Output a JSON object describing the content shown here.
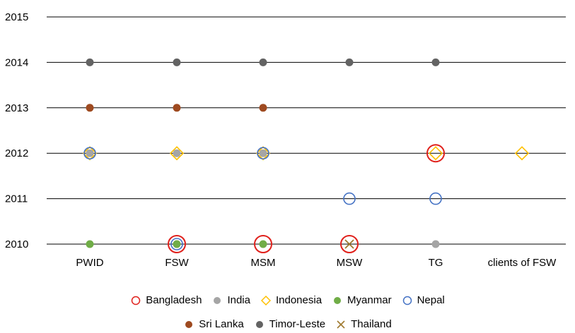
{
  "chart_data": {
    "type": "scatter",
    "title": "",
    "xlabel": "",
    "ylabel": "",
    "categories": [
      "PWID",
      "FSW",
      "MSM",
      "MSW",
      "TG",
      "clients of FSW"
    ],
    "y_ticks": [
      "2010",
      "2011",
      "2012",
      "2013",
      "2014",
      "2015"
    ],
    "ylim": [
      2010,
      2015
    ],
    "grid": true,
    "legend_position": "bottom",
    "series": [
      {
        "name": "Bangladesh",
        "marker": "open-circle-large",
        "color": "#e0201b",
        "points": [
          {
            "x": "FSW",
            "y": 2010
          },
          {
            "x": "MSM",
            "y": 2010
          },
          {
            "x": "MSW",
            "y": 2010
          },
          {
            "x": "TG",
            "y": 2012
          }
        ]
      },
      {
        "name": "India",
        "marker": "filled-circle",
        "color": "#a5a5a5",
        "points": [
          {
            "x": "PWID",
            "y": 2012
          },
          {
            "x": "FSW",
            "y": 2012
          },
          {
            "x": "MSM",
            "y": 2012
          },
          {
            "x": "FSW",
            "y": 2010
          },
          {
            "x": "TG",
            "y": 2010
          }
        ]
      },
      {
        "name": "Indonesia",
        "marker": "open-diamond",
        "color": "#ffc000",
        "points": [
          {
            "x": "PWID",
            "y": 2012
          },
          {
            "x": "FSW",
            "y": 2012
          },
          {
            "x": "MSM",
            "y": 2012
          },
          {
            "x": "TG",
            "y": 2012
          },
          {
            "x": "clients of FSW",
            "y": 2012
          }
        ]
      },
      {
        "name": "Myanmar",
        "marker": "filled-circle",
        "color": "#70ad47",
        "points": [
          {
            "x": "PWID",
            "y": 2010
          },
          {
            "x": "FSW",
            "y": 2010
          },
          {
            "x": "MSM",
            "y": 2010
          }
        ]
      },
      {
        "name": "Nepal",
        "marker": "open-circle",
        "color": "#4472c4",
        "points": [
          {
            "x": "PWID",
            "y": 2012
          },
          {
            "x": "MSM",
            "y": 2012
          },
          {
            "x": "FSW",
            "y": 2010
          },
          {
            "x": "MSW",
            "y": 2011
          },
          {
            "x": "TG",
            "y": 2011
          }
        ]
      },
      {
        "name": "Sri Lanka",
        "marker": "filled-circle",
        "color": "#9e4a20",
        "points": [
          {
            "x": "PWID",
            "y": 2013
          },
          {
            "x": "FSW",
            "y": 2013
          },
          {
            "x": "MSM",
            "y": 2013
          }
        ]
      },
      {
        "name": "Timor-Leste",
        "marker": "filled-circle",
        "color": "#636363",
        "points": [
          {
            "x": "PWID",
            "y": 2014
          },
          {
            "x": "FSW",
            "y": 2014
          },
          {
            "x": "MSM",
            "y": 2014
          },
          {
            "x": "MSW",
            "y": 2014
          },
          {
            "x": "TG",
            "y": 2014
          }
        ]
      },
      {
        "name": "Thailand",
        "marker": "x",
        "color": "#a07a30",
        "points": [
          {
            "x": "MSW",
            "y": 2010
          }
        ]
      }
    ],
    "legend_rows": [
      [
        "Bangladesh",
        "India",
        "Indonesia",
        "Myanmar",
        "Nepal"
      ],
      [
        "Sri Lanka",
        "Timor-Leste",
        "Thailand"
      ]
    ]
  }
}
